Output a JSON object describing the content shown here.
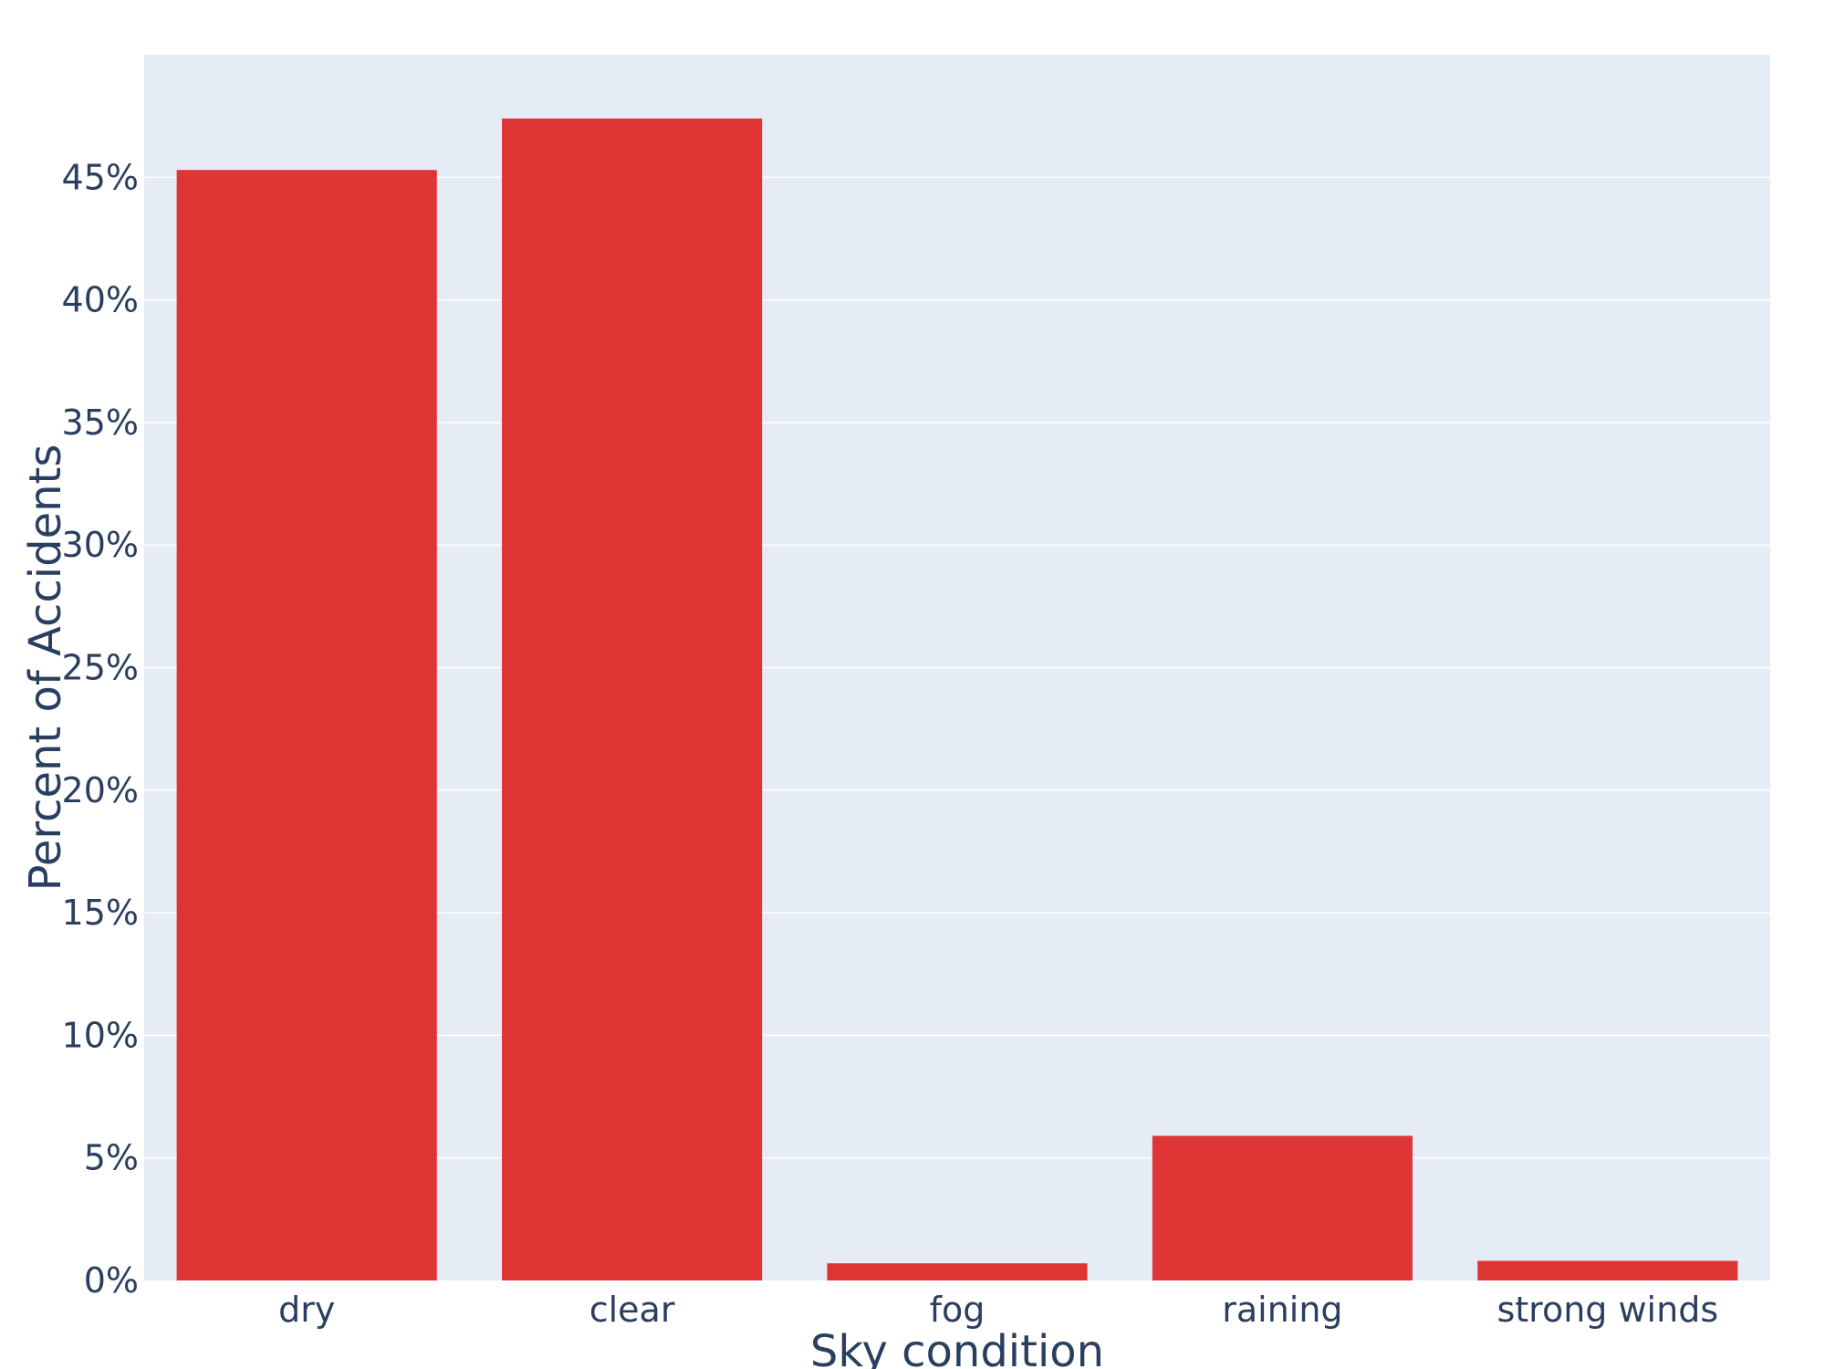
{
  "chart_data": {
    "type": "bar",
    "categories": [
      "dry",
      "clear",
      "fog",
      "raining",
      "strong winds"
    ],
    "values": [
      45.3,
      47.4,
      0.7,
      5.9,
      0.8
    ],
    "xlabel": "Sky condition",
    "ylabel": "Percent of Accidents",
    "ylim": [
      0,
      50
    ],
    "y_ticks": [
      0,
      5,
      10,
      15,
      20,
      25,
      30,
      35,
      40,
      45
    ],
    "y_tick_labels": [
      "0%",
      "5%",
      "10%",
      "15%",
      "20%",
      "25%",
      "30%",
      "35%",
      "40%",
      "45%"
    ],
    "grid": true,
    "colors": {
      "bar": "#e03535",
      "plot_background": "#e5ecf6",
      "gridline": "#ffffff",
      "text": "#2a3f5f"
    }
  }
}
